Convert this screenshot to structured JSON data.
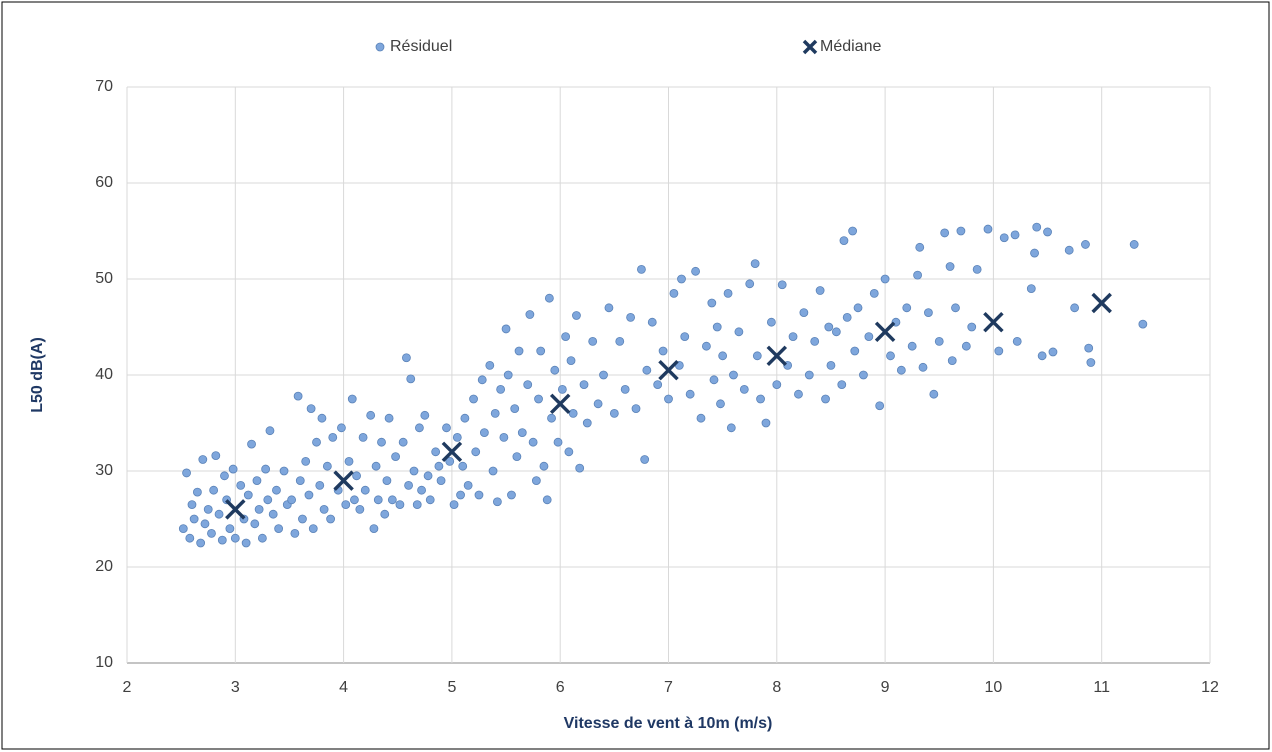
{
  "chart_data": {
    "type": "scatter",
    "xlabel": "Vitesse de vent à 10m (m/s)",
    "ylabel": "L50 dB(A)",
    "xlim": [
      2,
      12
    ],
    "xticks": [
      2,
      3,
      4,
      5,
      6,
      7,
      8,
      9,
      10,
      11,
      12
    ],
    "ylim": [
      10,
      70
    ],
    "yticks": [
      10,
      20,
      30,
      40,
      50,
      60,
      70
    ],
    "grid": true,
    "legend": "top",
    "series": [
      {
        "name": "Résiduel",
        "color": "#7ea6dc",
        "marker": "circle",
        "x": [
          2.52,
          2.55,
          2.58,
          2.6,
          2.62,
          2.65,
          2.68,
          2.7,
          2.72,
          2.75,
          2.78,
          2.8,
          2.82,
          2.85,
          2.88,
          2.9,
          2.92,
          2.95,
          2.98,
          3.0,
          3.05,
          3.08,
          3.1,
          3.12,
          3.15,
          3.18,
          3.2,
          3.22,
          3.25,
          3.28,
          3.3,
          3.32,
          3.35,
          3.38,
          3.4,
          3.45,
          3.48,
          3.52,
          3.55,
          3.58,
          3.6,
          3.62,
          3.65,
          3.68,
          3.7,
          3.72,
          3.75,
          3.78,
          3.8,
          3.82,
          3.85,
          3.88,
          3.9,
          3.95,
          3.98,
          4.02,
          4.05,
          4.08,
          4.1,
          4.12,
          4.15,
          4.18,
          4.2,
          4.25,
          4.28,
          4.3,
          4.32,
          4.35,
          4.38,
          4.4,
          4.42,
          4.45,
          4.48,
          4.52,
          4.55,
          4.58,
          4.6,
          4.62,
          4.65,
          4.68,
          4.7,
          4.72,
          4.75,
          4.78,
          4.8,
          4.85,
          4.88,
          4.9,
          4.95,
          4.98,
          5.02,
          5.05,
          5.08,
          5.1,
          5.12,
          5.15,
          5.2,
          5.22,
          5.25,
          5.28,
          5.3,
          5.35,
          5.38,
          5.4,
          5.42,
          5.45,
          5.48,
          5.5,
          5.52,
          5.55,
          5.58,
          5.6,
          5.62,
          5.65,
          5.7,
          5.72,
          5.75,
          5.78,
          5.8,
          5.82,
          5.85,
          5.88,
          5.9,
          5.92,
          5.95,
          5.98,
          6.02,
          6.05,
          6.08,
          6.1,
          6.12,
          6.15,
          6.18,
          6.22,
          6.25,
          6.3,
          6.35,
          6.4,
          6.45,
          6.5,
          6.55,
          6.6,
          6.65,
          6.7,
          6.75,
          6.78,
          6.8,
          6.85,
          6.9,
          6.95,
          7.0,
          7.05,
          7.1,
          7.12,
          7.15,
          7.2,
          7.25,
          7.3,
          7.35,
          7.4,
          7.42,
          7.45,
          7.48,
          7.5,
          7.55,
          7.58,
          7.6,
          7.65,
          7.7,
          7.75,
          7.8,
          7.82,
          7.85,
          7.9,
          7.95,
          8.0,
          8.05,
          8.1,
          8.15,
          8.2,
          8.25,
          8.3,
          8.35,
          8.4,
          8.45,
          8.48,
          8.5,
          8.55,
          8.6,
          8.62,
          8.65,
          8.7,
          8.72,
          8.75,
          8.8,
          8.85,
          8.9,
          8.95,
          9.0,
          9.05,
          9.1,
          9.15,
          9.2,
          9.25,
          9.3,
          9.32,
          9.35,
          9.4,
          9.45,
          9.5,
          9.55,
          9.6,
          9.62,
          9.65,
          9.7,
          9.75,
          9.8,
          9.85,
          9.95,
          10.05,
          10.1,
          10.2,
          10.22,
          10.35,
          10.38,
          10.4,
          10.45,
          10.5,
          10.55,
          10.7,
          10.75,
          10.85,
          10.88,
          10.9,
          11.3,
          11.38
        ],
        "values": [
          24,
          29.8,
          23,
          26.5,
          25,
          27.8,
          22.5,
          31.2,
          24.5,
          26,
          23.5,
          28,
          31.6,
          25.5,
          22.8,
          29.5,
          27,
          24,
          30.2,
          23,
          28.5,
          25,
          22.5,
          27.5,
          32.8,
          24.5,
          29,
          26,
          23,
          30.2,
          27,
          34.2,
          25.5,
          28,
          24,
          30,
          26.5,
          27,
          23.5,
          37.8,
          29,
          25,
          31,
          27.5,
          36.5,
          24,
          33,
          28.5,
          35.5,
          26,
          30.5,
          25,
          33.5,
          28,
          34.5,
          26.5,
          31,
          37.5,
          27,
          29.5,
          26,
          33.5,
          28,
          35.8,
          24,
          30.5,
          27,
          33,
          25.5,
          29,
          35.5,
          27,
          31.5,
          26.5,
          33,
          41.8,
          28.5,
          39.6,
          30,
          26.5,
          34.5,
          28,
          35.8,
          29.5,
          27,
          32,
          30.5,
          29,
          34.5,
          31,
          26.5,
          33.5,
          27.5,
          30.5,
          35.5,
          28.5,
          37.5,
          32,
          27.5,
          39.5,
          34,
          41,
          30,
          36,
          26.8,
          38.5,
          33.5,
          44.8,
          40,
          27.5,
          36.5,
          31.5,
          42.5,
          34,
          39,
          46.3,
          33,
          29,
          37.5,
          42.5,
          30.5,
          27,
          48,
          35.5,
          40.5,
          33,
          38.5,
          44,
          32,
          41.5,
          36,
          46.2,
          30.3,
          39,
          35,
          43.5,
          37,
          40,
          47,
          36,
          43.5,
          38.5,
          46,
          36.5,
          51,
          31.2,
          40.5,
          45.5,
          39,
          42.5,
          37.5,
          48.5,
          41,
          50,
          44,
          38,
          50.8,
          35.5,
          43,
          47.5,
          39.5,
          45,
          37,
          42,
          48.5,
          34.5,
          40,
          44.5,
          38.5,
          49.5,
          51.6,
          42,
          37.5,
          35,
          45.5,
          39,
          49.4,
          41,
          44,
          38,
          46.5,
          40,
          43.5,
          48.8,
          37.5,
          45,
          41,
          44.5,
          39,
          54,
          46,
          55,
          42.5,
          47,
          40,
          44,
          48.5,
          36.8,
          50,
          42,
          45.5,
          40.5,
          47,
          43,
          50.4,
          53.3,
          40.8,
          46.5,
          38,
          43.5,
          54.8,
          51.3,
          41.5,
          47,
          55,
          43,
          45,
          51,
          55.2,
          42.5,
          54.3,
          54.6,
          43.5,
          49,
          52.7,
          55.4,
          42,
          54.9,
          42.4,
          53,
          47,
          53.6,
          42.8,
          41.3,
          53.6,
          45.3
        ]
      },
      {
        "name": "Médiane",
        "color": "#1f3a5f",
        "marker": "x",
        "x": [
          3,
          4,
          5,
          6,
          7,
          8,
          9,
          10,
          11
        ],
        "values": [
          26,
          29,
          32,
          37,
          40.5,
          42,
          44.5,
          45.5,
          47.5
        ]
      }
    ]
  }
}
